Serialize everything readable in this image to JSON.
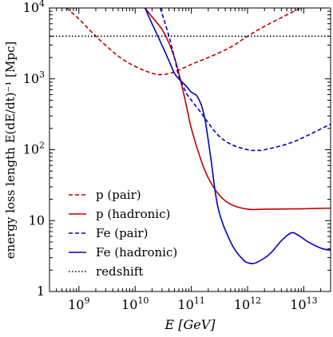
{
  "chart_data": {
    "type": "line",
    "xlabel": "E [GeV]",
    "ylabel": "energy loss length E(dE/dt)⁻¹ [Mpc]",
    "xscale": "log",
    "yscale": "log",
    "xlim": [
      300000000.0,
      30000000000000.0
    ],
    "ylim": [
      1,
      10000
    ],
    "x_ticks": [
      {
        "value": 1000000000.0,
        "base": "10",
        "exp": "9"
      },
      {
        "value": 10000000000.0,
        "base": "10",
        "exp": "10"
      },
      {
        "value": 100000000000.0,
        "base": "10",
        "exp": "11"
      },
      {
        "value": 1000000000000.0,
        "base": "10",
        "exp": "12"
      },
      {
        "value": 10000000000000.0,
        "base": "10",
        "exp": "13"
      }
    ],
    "y_ticks": [
      {
        "value": 1,
        "base": "1",
        "exp": ""
      },
      {
        "value": 10,
        "base": "10",
        "exp": ""
      },
      {
        "value": 100,
        "base": "10",
        "exp": "2"
      },
      {
        "value": 1000,
        "base": "10",
        "exp": "3"
      },
      {
        "value": 10000,
        "base": "10",
        "exp": "4"
      }
    ],
    "legend_position": "bottom-left",
    "series": [
      {
        "name": "p (pair)",
        "color": "#c00000",
        "dash": "dashed",
        "x": [
          600000000.0,
          1000000000.0,
          2000000000.0,
          5000000000.0,
          10000000000.0,
          20000000000.0,
          30000000000.0,
          50000000000.0,
          100000000000.0,
          200000000000.0,
          500000000000.0,
          1000000000000.0,
          2000000000000.0,
          5000000000000.0,
          10000000000000.0,
          30000000000000.0
        ],
        "y": [
          10000,
          7000,
          4000,
          2100,
          1500,
          1200,
          1150,
          1250,
          1600,
          2000,
          2800,
          4000,
          5500,
          8000,
          10500,
          16000
        ]
      },
      {
        "name": "p (hadronic)",
        "color": "#c00000",
        "dash": "solid",
        "x": [
          15000000000.0,
          20000000000.0,
          30000000000.0,
          40000000000.0,
          50000000000.0,
          60000000000.0,
          80000000000.0,
          100000000000.0,
          150000000000.0,
          200000000000.0,
          300000000000.0,
          500000000000.0,
          1000000000000.0,
          2000000000000.0,
          5000000000000.0,
          10000000000000.0,
          30000000000000.0
        ],
        "y": [
          10000,
          7500,
          5000,
          3200,
          2000,
          1200,
          450,
          200,
          70,
          40,
          24,
          17,
          14.5,
          14.5,
          14.6,
          14.7,
          15
        ]
      },
      {
        "name": "Fe (pair)",
        "color": "#0000c0",
        "dash": "dashed",
        "x": [
          28000000000.0,
          40000000000.0,
          50000000000.0,
          60000000000.0,
          80000000000.0,
          100000000000.0,
          150000000000.0,
          200000000000.0,
          300000000000.0,
          500000000000.0,
          1000000000000.0,
          1500000000000.0,
          2000000000000.0,
          5000000000000.0,
          10000000000000.0,
          30000000000000.0
        ],
        "y": [
          10000,
          4000,
          2000,
          1100,
          650,
          500,
          330,
          240,
          160,
          120,
          100,
          98,
          100,
          120,
          150,
          230
        ]
      },
      {
        "name": "Fe (hadronic)",
        "color": "#0000c0",
        "dash": "solid",
        "x": [
          15000000000.0,
          20000000000.0,
          30000000000.0,
          40000000000.0,
          50000000000.0,
          60000000000.0,
          80000000000.0,
          100000000000.0,
          130000000000.0,
          170000000000.0,
          220000000000.0,
          300000000000.0,
          500000000000.0,
          800000000000.0,
          1100000000000.0,
          1500000000000.0,
          2500000000000.0,
          4000000000000.0,
          6000000000000.0,
          8000000000000.0,
          12000000000000.0,
          20000000000000.0,
          30000000000000.0
        ],
        "y": [
          10000,
          6000,
          3000,
          1800,
          1200,
          1000,
          800,
          650,
          550,
          300,
          80,
          15,
          5,
          2.9,
          2.5,
          2.6,
          3.4,
          5.2,
          6.7,
          6.2,
          5,
          4.1,
          3.8
        ]
      },
      {
        "name": "redshift",
        "color": "#000000",
        "dash": "dotted",
        "x": [
          300000000.0,
          30000000000000.0
        ],
        "y": [
          4000,
          4000
        ]
      }
    ]
  }
}
